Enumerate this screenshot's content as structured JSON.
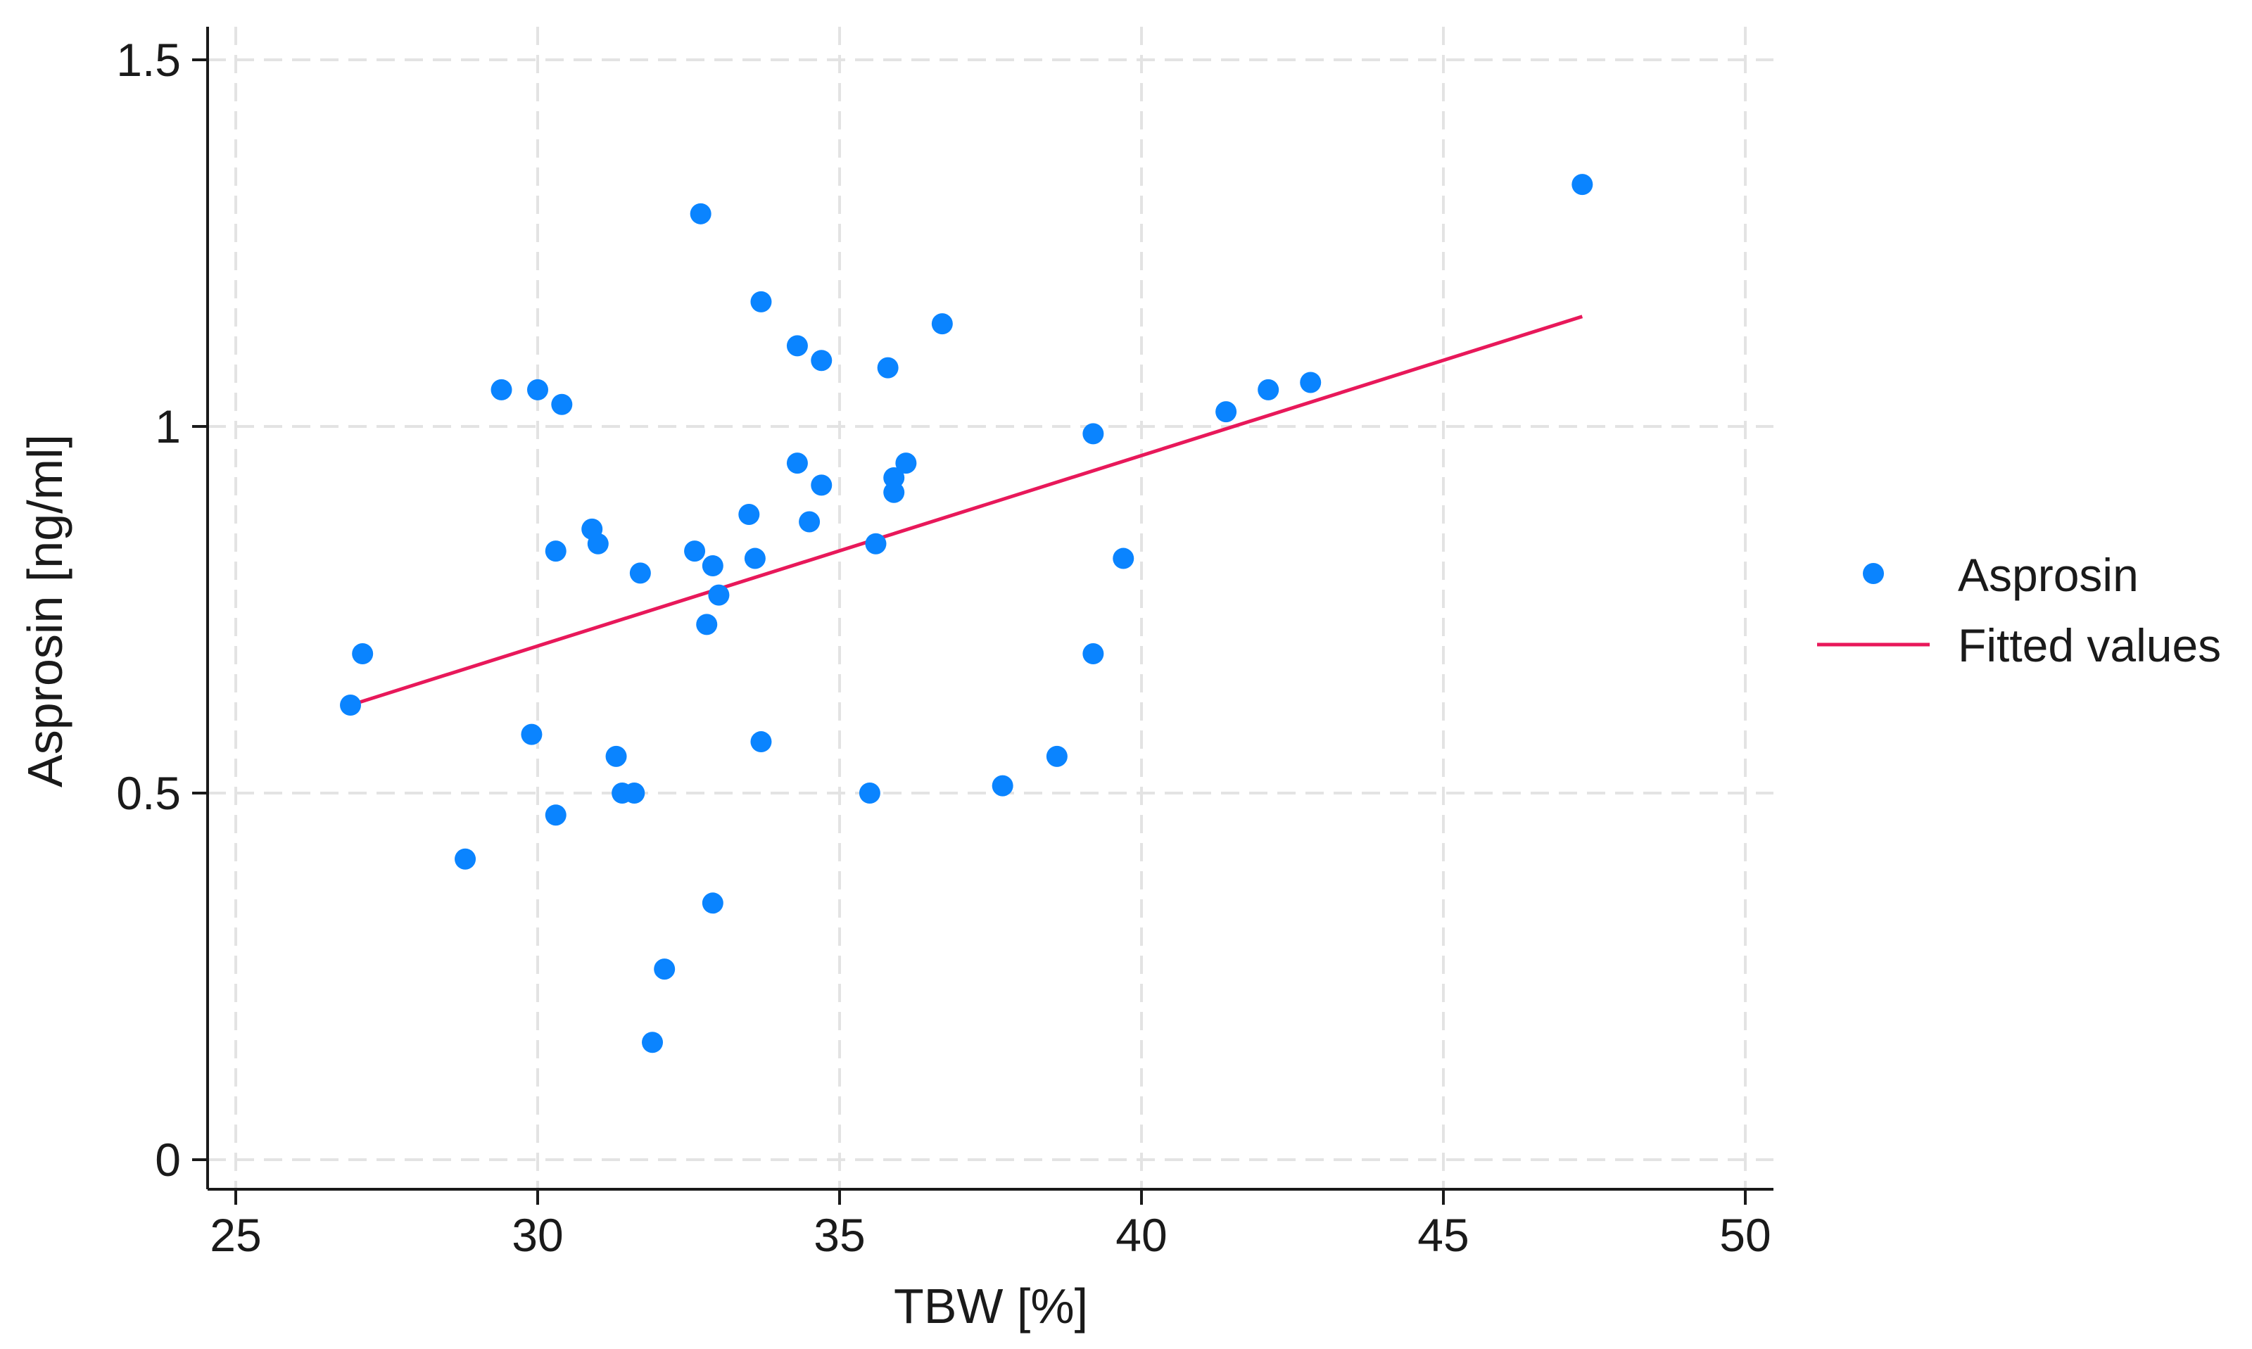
{
  "chart_data": {
    "type": "scatter",
    "title": "",
    "xlabel": "TBW [%]",
    "ylabel": "Asprosin [ng/ml]",
    "xlim": [
      25,
      50
    ],
    "ylim": [
      0,
      1.5
    ],
    "xticks": [
      25,
      30,
      35,
      40,
      45,
      50
    ],
    "yticks": [
      0,
      0.5,
      1,
      1.5
    ],
    "xtick_labels": [
      "25",
      "30",
      "35",
      "40",
      "45",
      "50"
    ],
    "ytick_labels": [
      "0",
      "0.5",
      "1",
      "1.5"
    ],
    "grid": true,
    "legend_position": "right",
    "colors": {
      "points": "#0a84ff",
      "fit": "#e8185a",
      "axis": "#1a1a1a",
      "grid": "#e3e3e3"
    },
    "series": [
      {
        "name": "Asprosin",
        "kind": "scatter",
        "points": [
          {
            "x": 26.9,
            "y": 0.62
          },
          {
            "x": 27.1,
            "y": 0.69
          },
          {
            "x": 28.8,
            "y": 0.41
          },
          {
            "x": 29.4,
            "y": 1.05
          },
          {
            "x": 29.9,
            "y": 0.58
          },
          {
            "x": 30.0,
            "y": 1.05
          },
          {
            "x": 30.3,
            "y": 0.83
          },
          {
            "x": 30.3,
            "y": 0.47
          },
          {
            "x": 30.4,
            "y": 1.03
          },
          {
            "x": 30.9,
            "y": 0.86
          },
          {
            "x": 31.0,
            "y": 0.84
          },
          {
            "x": 31.3,
            "y": 0.55
          },
          {
            "x": 31.4,
            "y": 0.5
          },
          {
            "x": 31.6,
            "y": 0.5
          },
          {
            "x": 31.7,
            "y": 0.8
          },
          {
            "x": 31.9,
            "y": 0.16
          },
          {
            "x": 32.1,
            "y": 0.26
          },
          {
            "x": 32.6,
            "y": 0.83
          },
          {
            "x": 32.7,
            "y": 1.29
          },
          {
            "x": 32.8,
            "y": 0.73
          },
          {
            "x": 32.9,
            "y": 0.81
          },
          {
            "x": 32.9,
            "y": 0.35
          },
          {
            "x": 33.0,
            "y": 0.77
          },
          {
            "x": 33.5,
            "y": 0.88
          },
          {
            "x": 33.6,
            "y": 0.82
          },
          {
            "x": 33.7,
            "y": 1.17
          },
          {
            "x": 33.7,
            "y": 0.57
          },
          {
            "x": 34.3,
            "y": 1.11
          },
          {
            "x": 34.3,
            "y": 0.95
          },
          {
            "x": 34.5,
            "y": 0.87
          },
          {
            "x": 34.7,
            "y": 1.09
          },
          {
            "x": 34.7,
            "y": 0.92
          },
          {
            "x": 35.5,
            "y": 0.5
          },
          {
            "x": 35.6,
            "y": 0.84
          },
          {
            "x": 35.8,
            "y": 1.08
          },
          {
            "x": 35.9,
            "y": 0.93
          },
          {
            "x": 35.9,
            "y": 0.91
          },
          {
            "x": 36.1,
            "y": 0.95
          },
          {
            "x": 36.7,
            "y": 1.14
          },
          {
            "x": 37.7,
            "y": 0.51
          },
          {
            "x": 38.6,
            "y": 0.55
          },
          {
            "x": 39.2,
            "y": 0.99
          },
          {
            "x": 39.2,
            "y": 0.69
          },
          {
            "x": 39.7,
            "y": 0.82
          },
          {
            "x": 41.4,
            "y": 1.02
          },
          {
            "x": 42.1,
            "y": 1.05
          },
          {
            "x": 42.8,
            "y": 1.06
          },
          {
            "x": 47.3,
            "y": 1.33
          }
        ]
      },
      {
        "name": "Fitted values",
        "kind": "line",
        "points": [
          {
            "x": 26.9,
            "y": 0.62
          },
          {
            "x": 47.3,
            "y": 1.15
          }
        ]
      }
    ]
  }
}
